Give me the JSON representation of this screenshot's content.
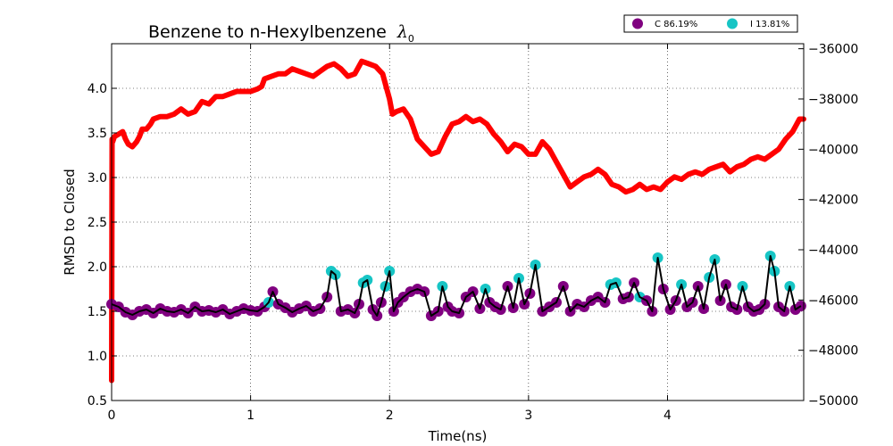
{
  "chart_data": {
    "type": "line",
    "title": "Benzene to n-Hexylbenzene",
    "title_symbol": "λ",
    "title_subscript": "0",
    "xlabel": "Time(ns)",
    "ylabel": "RMSD to Closed",
    "ylabel_right": "",
    "xlim": [
      0,
      4.98
    ],
    "ylim": [
      0.5,
      4.5
    ],
    "y2lim": [
      -50000,
      -35800
    ],
    "x_ticks": [
      0,
      1,
      2,
      3,
      4
    ],
    "y_ticks": [
      0.5,
      1.0,
      1.5,
      2.0,
      2.5,
      3.0,
      3.5,
      4.0
    ],
    "y_tick_labels": [
      "0.5",
      "1.0",
      "1.5",
      "2.0",
      "2.5",
      "3.0",
      "3.5",
      "4.0"
    ],
    "y2_ticks": [
      -50000,
      -48000,
      -46000,
      -44000,
      -42000,
      -40000,
      -38000,
      -36000
    ],
    "y2_tick_labels": [
      "−50000",
      "−48000",
      "−46000",
      "−44000",
      "−42000",
      "−40000",
      "−38000",
      "−36000"
    ],
    "grid": true,
    "legend_position": "top-right",
    "legend": [
      {
        "label": "C 86.19%",
        "color": "#800080"
      },
      {
        "label": "I 13.81%",
        "color": "#17c5c5"
      }
    ],
    "energy_series": {
      "axis": "right",
      "color": "#ff0000",
      "x": [
        0,
        0.003,
        0.008,
        0.02,
        0.05,
        0.08,
        0.1,
        0.12,
        0.15,
        0.18,
        0.2,
        0.22,
        0.25,
        0.28,
        0.3,
        0.35,
        0.4,
        0.45,
        0.5,
        0.55,
        0.6,
        0.65,
        0.7,
        0.75,
        0.8,
        0.85,
        0.9,
        0.95,
        1.0,
        1.05,
        1.08,
        1.1,
        1.15,
        1.2,
        1.25,
        1.3,
        1.35,
        1.4,
        1.45,
        1.5,
        1.55,
        1.6,
        1.65,
        1.7,
        1.75,
        1.8,
        1.85,
        1.9,
        1.95,
        1.98,
        2.0,
        2.02,
        2.05,
        2.1,
        2.15,
        2.2,
        2.25,
        2.3,
        2.35,
        2.4,
        2.45,
        2.5,
        2.55,
        2.6,
        2.65,
        2.7,
        2.75,
        2.8,
        2.85,
        2.9,
        2.95,
        3.0,
        3.05,
        3.1,
        3.15,
        3.2,
        3.25,
        3.3,
        3.35,
        3.4,
        3.45,
        3.5,
        3.55,
        3.6,
        3.65,
        3.7,
        3.75,
        3.8,
        3.85,
        3.9,
        3.95,
        4.0,
        4.05,
        4.1,
        4.15,
        4.2,
        4.25,
        4.3,
        4.35,
        4.4,
        4.45,
        4.5,
        4.55,
        4.6,
        4.65,
        4.7,
        4.75,
        4.8,
        4.85,
        4.9,
        4.95,
        4.98
      ],
      "y": [
        -49200,
        -39600,
        -39700,
        -39500,
        -39400,
        -39300,
        -39600,
        -39800,
        -39900,
        -39700,
        -39500,
        -39200,
        -39200,
        -39000,
        -38800,
        -38700,
        -38700,
        -38600,
        -38400,
        -38600,
        -38500,
        -38100,
        -38200,
        -37900,
        -37900,
        -37800,
        -37700,
        -37700,
        -37700,
        -37600,
        -37500,
        -37200,
        -37100,
        -37000,
        -37000,
        -36800,
        -36900,
        -37000,
        -37100,
        -36900,
        -36700,
        -36600,
        -36800,
        -37100,
        -37000,
        -36500,
        -36600,
        -36700,
        -37000,
        -37600,
        -38000,
        -38600,
        -38500,
        -38400,
        -38800,
        -39600,
        -39900,
        -40200,
        -40100,
        -39500,
        -39000,
        -38900,
        -38700,
        -38900,
        -38800,
        -39000,
        -39400,
        -39700,
        -40100,
        -39800,
        -39900,
        -40200,
        -40200,
        -39700,
        -40000,
        -40500,
        -41000,
        -41500,
        -41300,
        -41100,
        -41000,
        -40800,
        -41000,
        -41400,
        -41500,
        -41700,
        -41600,
        -41400,
        -41600,
        -41500,
        -41600,
        -41300,
        -41100,
        -41200,
        -41000,
        -40900,
        -41000,
        -40800,
        -40700,
        -40600,
        -40900,
        -40700,
        -40600,
        -40400,
        -40300,
        -40400,
        -40200,
        -40000,
        -39600,
        -39300,
        -38800,
        -38800
      ]
    },
    "rmsd_series": {
      "axis": "left",
      "line_color": "#000000",
      "x": [
        0,
        0.05,
        0.1,
        0.15,
        0.2,
        0.25,
        0.3,
        0.35,
        0.4,
        0.45,
        0.5,
        0.55,
        0.6,
        0.65,
        0.7,
        0.75,
        0.8,
        0.85,
        0.9,
        0.95,
        1.0,
        1.05,
        1.1,
        1.13,
        1.16,
        1.2,
        1.25,
        1.3,
        1.35,
        1.4,
        1.45,
        1.5,
        1.55,
        1.58,
        1.61,
        1.65,
        1.7,
        1.75,
        1.78,
        1.81,
        1.84,
        1.88,
        1.91,
        1.94,
        1.97,
        2.0,
        2.03,
        2.06,
        2.1,
        2.15,
        2.2,
        2.25,
        2.3,
        2.35,
        2.38,
        2.42,
        2.45,
        2.5,
        2.55,
        2.6,
        2.65,
        2.69,
        2.72,
        2.76,
        2.8,
        2.85,
        2.89,
        2.93,
        2.97,
        3.01,
        3.05,
        3.1,
        3.15,
        3.2,
        3.25,
        3.3,
        3.35,
        3.4,
        3.45,
        3.5,
        3.55,
        3.59,
        3.63,
        3.68,
        3.72,
        3.76,
        3.8,
        3.85,
        3.89,
        3.93,
        3.97,
        4.02,
        4.06,
        4.1,
        4.14,
        4.18,
        4.22,
        4.26,
        4.3,
        4.34,
        4.38,
        4.42,
        4.46,
        4.5,
        4.54,
        4.58,
        4.62,
        4.66,
        4.7,
        4.74,
        4.77,
        4.8,
        4.84,
        4.88,
        4.92,
        4.96
      ],
      "y": [
        1.58,
        1.55,
        1.49,
        1.46,
        1.5,
        1.52,
        1.48,
        1.53,
        1.5,
        1.49,
        1.52,
        1.48,
        1.55,
        1.5,
        1.51,
        1.49,
        1.52,
        1.47,
        1.5,
        1.53,
        1.51,
        1.5,
        1.55,
        1.6,
        1.72,
        1.58,
        1.54,
        1.49,
        1.53,
        1.56,
        1.5,
        1.53,
        1.66,
        1.95,
        1.91,
        1.5,
        1.52,
        1.48,
        1.58,
        1.82,
        1.85,
        1.52,
        1.45,
        1.6,
        1.78,
        1.95,
        1.5,
        1.6,
        1.66,
        1.72,
        1.75,
        1.72,
        1.45,
        1.5,
        1.78,
        1.55,
        1.5,
        1.48,
        1.66,
        1.72,
        1.53,
        1.75,
        1.6,
        1.55,
        1.52,
        1.78,
        1.54,
        1.87,
        1.58,
        1.7,
        2.02,
        1.5,
        1.55,
        1.6,
        1.78,
        1.5,
        1.58,
        1.55,
        1.62,
        1.66,
        1.6,
        1.8,
        1.82,
        1.64,
        1.66,
        1.82,
        1.66,
        1.62,
        1.5,
        2.1,
        1.75,
        1.52,
        1.62,
        1.8,
        1.55,
        1.6,
        1.78,
        1.53,
        1.88,
        2.08,
        1.62,
        1.8,
        1.55,
        1.52,
        1.78,
        1.55,
        1.5,
        1.52,
        1.58,
        2.12,
        1.95,
        1.55,
        1.5,
        1.78,
        1.52,
        1.56
      ],
      "state": [
        "C",
        "C",
        "C",
        "C",
        "C",
        "C",
        "C",
        "C",
        "C",
        "C",
        "C",
        "C",
        "C",
        "C",
        "C",
        "C",
        "C",
        "C",
        "C",
        "C",
        "C",
        "C",
        "C",
        "I",
        "C",
        "C",
        "C",
        "C",
        "C",
        "C",
        "C",
        "C",
        "C",
        "I",
        "I",
        "C",
        "C",
        "C",
        "C",
        "I",
        "I",
        "C",
        "C",
        "C",
        "I",
        "I",
        "C",
        "C",
        "C",
        "C",
        "C",
        "C",
        "C",
        "C",
        "I",
        "C",
        "C",
        "C",
        "C",
        "C",
        "C",
        "I",
        "C",
        "C",
        "C",
        "C",
        "C",
        "I",
        "C",
        "C",
        "I",
        "C",
        "C",
        "C",
        "C",
        "C",
        "C",
        "C",
        "C",
        "C",
        "C",
        "I",
        "I",
        "C",
        "C",
        "C",
        "I",
        "C",
        "C",
        "I",
        "C",
        "C",
        "C",
        "I",
        "C",
        "C",
        "C",
        "C",
        "I",
        "I",
        "C",
        "C",
        "C",
        "C",
        "I",
        "C",
        "C",
        "C",
        "C",
        "I",
        "I",
        "C",
        "C",
        "I",
        "C",
        "C"
      ]
    }
  }
}
